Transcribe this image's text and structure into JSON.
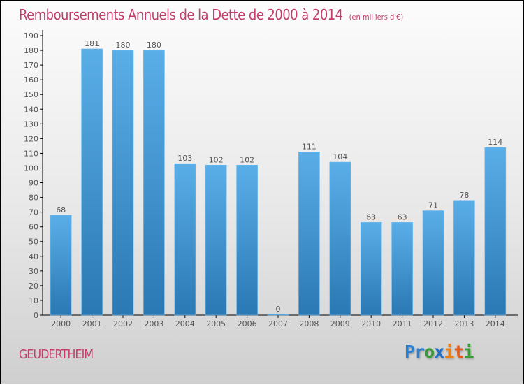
{
  "chart_data": {
    "type": "bar",
    "title": "Remboursements Annuels de la Dette de 2000 à 2014",
    "subtitle": "(en milliers d'€)",
    "xlabel": "",
    "ylabel": "",
    "categories": [
      "2000",
      "2001",
      "2002",
      "2003",
      "2004",
      "2005",
      "2006",
      "2007",
      "2008",
      "2009",
      "2010",
      "2011",
      "2012",
      "2013",
      "2014"
    ],
    "values": [
      68,
      181,
      180,
      180,
      103,
      102,
      102,
      0,
      111,
      104,
      63,
      63,
      71,
      78,
      114
    ],
    "ylim": [
      0,
      190
    ],
    "yticks": [
      0,
      10,
      20,
      30,
      40,
      50,
      60,
      70,
      80,
      90,
      100,
      110,
      120,
      130,
      140,
      150,
      160,
      170,
      180,
      190
    ],
    "grid": false,
    "legend": "none",
    "data_labels": true,
    "bar_color_top": "#5aaee8",
    "bar_color_bottom": "#2a78b4"
  },
  "commune": "GEUDERTHEIM",
  "logo": {
    "letters": [
      {
        "ch": "P",
        "color": "#2a7fd0"
      },
      {
        "ch": "r",
        "color": "#2a7fd0"
      },
      {
        "ch": "o",
        "color": "#3a9a3a"
      },
      {
        "ch": "x",
        "color": "#1f6fc8"
      },
      {
        "ch": "i",
        "color": "#e8801a"
      },
      {
        "ch": "t",
        "color": "#e85a1a"
      },
      {
        "ch": "i",
        "color": "#3a9a3a"
      }
    ]
  },
  "colors": {
    "title": "#c43d6a",
    "axis": "#000000",
    "text": "#555555"
  }
}
